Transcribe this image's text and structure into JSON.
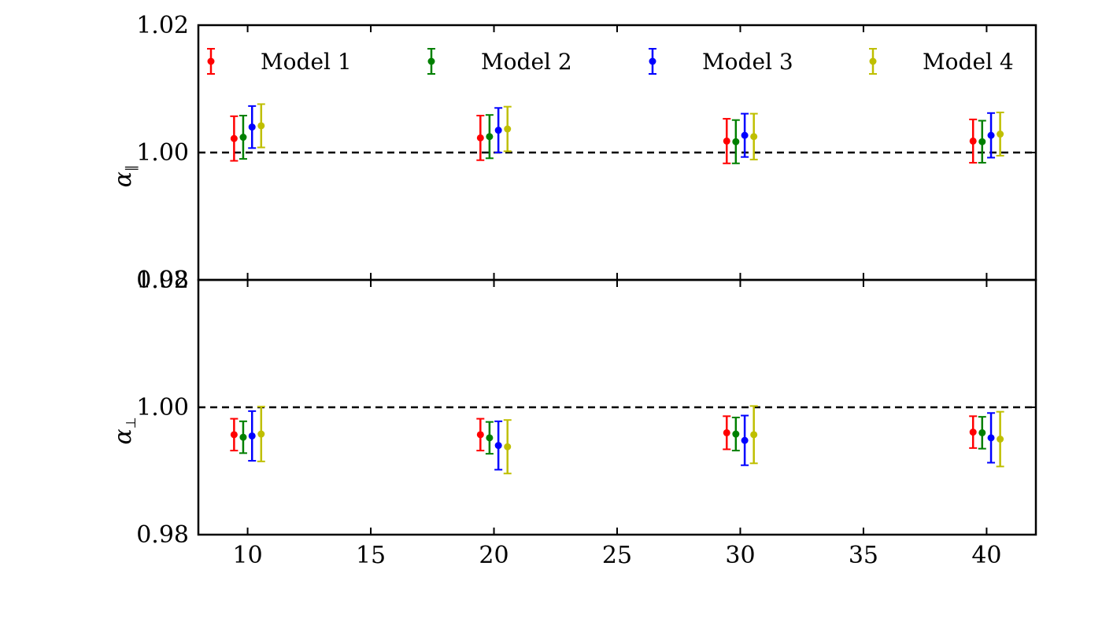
{
  "chart_data": {
    "type": "scatter",
    "errorbars": true,
    "legend_position": "top",
    "x_ticks": [
      "10",
      "15",
      "20",
      "25",
      "30",
      "35",
      "40"
    ],
    "xlim": [
      8,
      42
    ],
    "series_colors": [
      "#ff0000",
      "#008000",
      "#0000ff",
      "#bfbf00"
    ],
    "panels": [
      {
        "id": "alpha-parallel",
        "ylabel_symbol": "α",
        "ylabel_subscript": "∥",
        "ylim": [
          0.98,
          1.02
        ],
        "y_ticks": [
          "0.98",
          "1.00",
          "1.02"
        ],
        "reference_line": 1.0,
        "series": [
          {
            "name": "Model 1",
            "x": [
              10,
              20,
              30,
              40
            ],
            "y": [
              1.0022,
              1.0023,
              1.0018,
              1.0018
            ],
            "yerr": [
              0.0035,
              0.0035,
              0.0035,
              0.0034
            ]
          },
          {
            "name": "Model 2",
            "x": [
              10,
              20,
              30,
              40
            ],
            "y": [
              1.0024,
              1.0025,
              1.0017,
              1.0017
            ],
            "yerr": [
              0.0034,
              0.0034,
              0.0034,
              0.0033
            ]
          },
          {
            "name": "Model 3",
            "x": [
              10,
              20,
              30,
              40
            ],
            "y": [
              1.004,
              1.0035,
              1.0027,
              1.0027
            ],
            "yerr": [
              0.0033,
              0.0035,
              0.0034,
              0.0035
            ]
          },
          {
            "name": "Model 4",
            "x": [
              10,
              20,
              30,
              40
            ],
            "y": [
              1.0042,
              1.0037,
              1.0025,
              1.0029
            ],
            "yerr": [
              0.0034,
              0.0035,
              0.0036,
              0.0034
            ]
          }
        ]
      },
      {
        "id": "alpha-perp",
        "ylabel_symbol": "α",
        "ylabel_subscript": "⊥",
        "ylim": [
          0.98,
          1.02
        ],
        "y_ticks": [
          "0.98",
          "1.00",
          "1.02"
        ],
        "reference_line": 1.0,
        "series": [
          {
            "name": "Model 1",
            "x": [
              10,
              20,
              30,
              40
            ],
            "y": [
              0.9957,
              0.9957,
              0.996,
              0.9961
            ],
            "yerr": [
              0.0025,
              0.0025,
              0.0026,
              0.0025
            ]
          },
          {
            "name": "Model 2",
            "x": [
              10,
              20,
              30,
              40
            ],
            "y": [
              0.9953,
              0.9952,
              0.9958,
              0.996
            ],
            "yerr": [
              0.0025,
              0.0025,
              0.0026,
              0.0025
            ]
          },
          {
            "name": "Model 3",
            "x": [
              10,
              20,
              30,
              40
            ],
            "y": [
              0.9955,
              0.994,
              0.9948,
              0.9952
            ],
            "yerr": [
              0.0039,
              0.0038,
              0.0039,
              0.0039
            ]
          },
          {
            "name": "Model 4",
            "x": [
              10,
              20,
              30,
              40
            ],
            "y": [
              0.9958,
              0.9938,
              0.9957,
              0.995
            ],
            "yerr": [
              0.0043,
              0.0042,
              0.0045,
              0.0043
            ]
          }
        ]
      }
    ]
  }
}
